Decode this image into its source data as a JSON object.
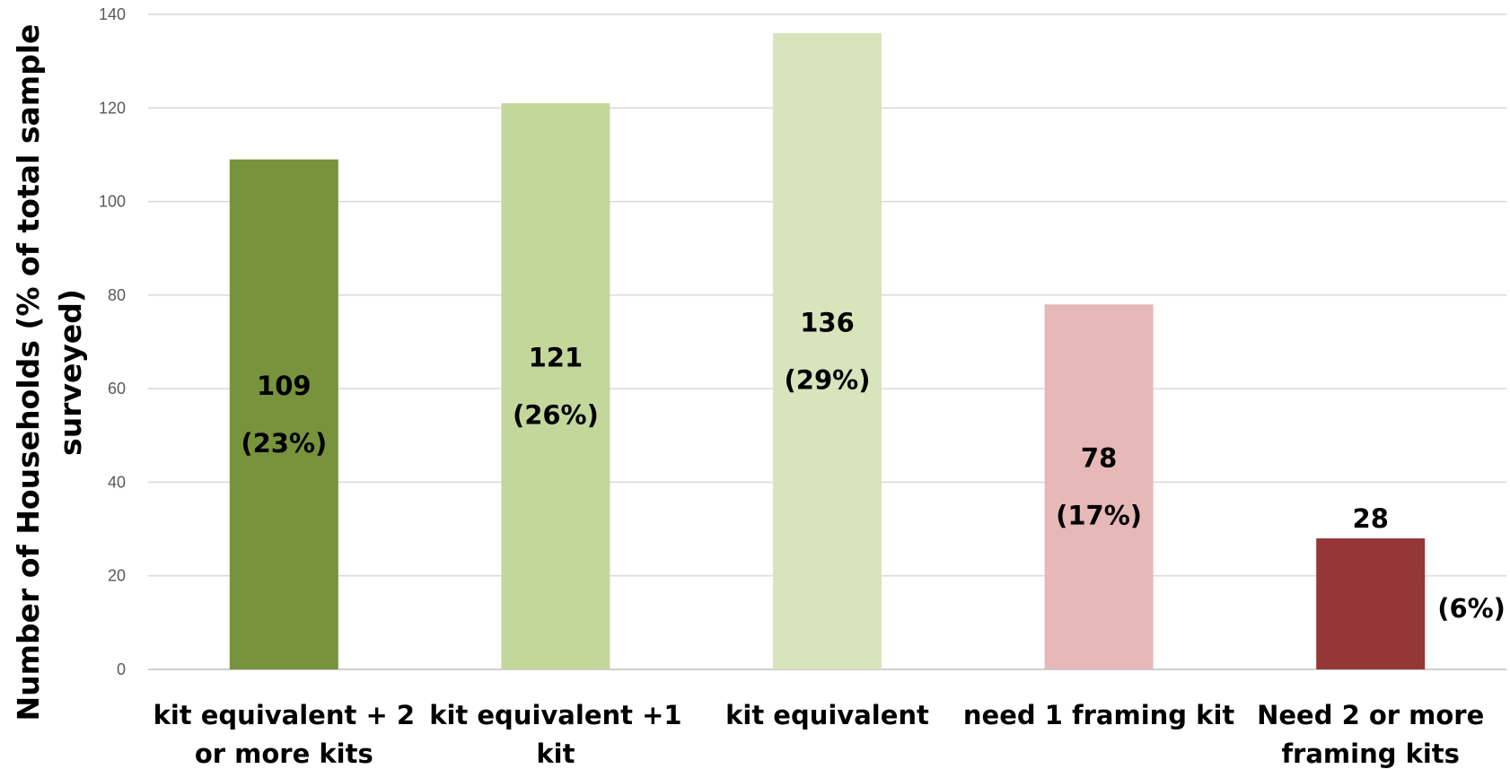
{
  "chart_data": {
    "type": "bar",
    "title": "",
    "xlabel": "",
    "ylabel_lines": [
      "Number of Households (% of total sample",
      "surveyed)"
    ],
    "ylim": [
      0,
      140
    ],
    "yticks": [
      0,
      20,
      40,
      60,
      80,
      100,
      120,
      140
    ],
    "grid": true,
    "categories": [
      [
        "kit equivalent + 2",
        "or more kits"
      ],
      [
        "kit equivalent +1",
        "kit"
      ],
      [
        "kit equivalent"
      ],
      [
        "need 1 framing kit"
      ],
      [
        "Need 2 or more",
        "framing kits"
      ]
    ],
    "values": [
      109,
      121,
      136,
      78,
      28
    ],
    "data_labels": [
      "109",
      "121",
      "136",
      "78",
      "28"
    ],
    "percent_labels": [
      "(23%)",
      "(26%)",
      "(29%)",
      "(17%)",
      "(6%)"
    ],
    "colors": [
      "#77933c",
      "#c4d79b",
      "#d8e4bc",
      "#e6b8b7",
      "#953735"
    ]
  }
}
